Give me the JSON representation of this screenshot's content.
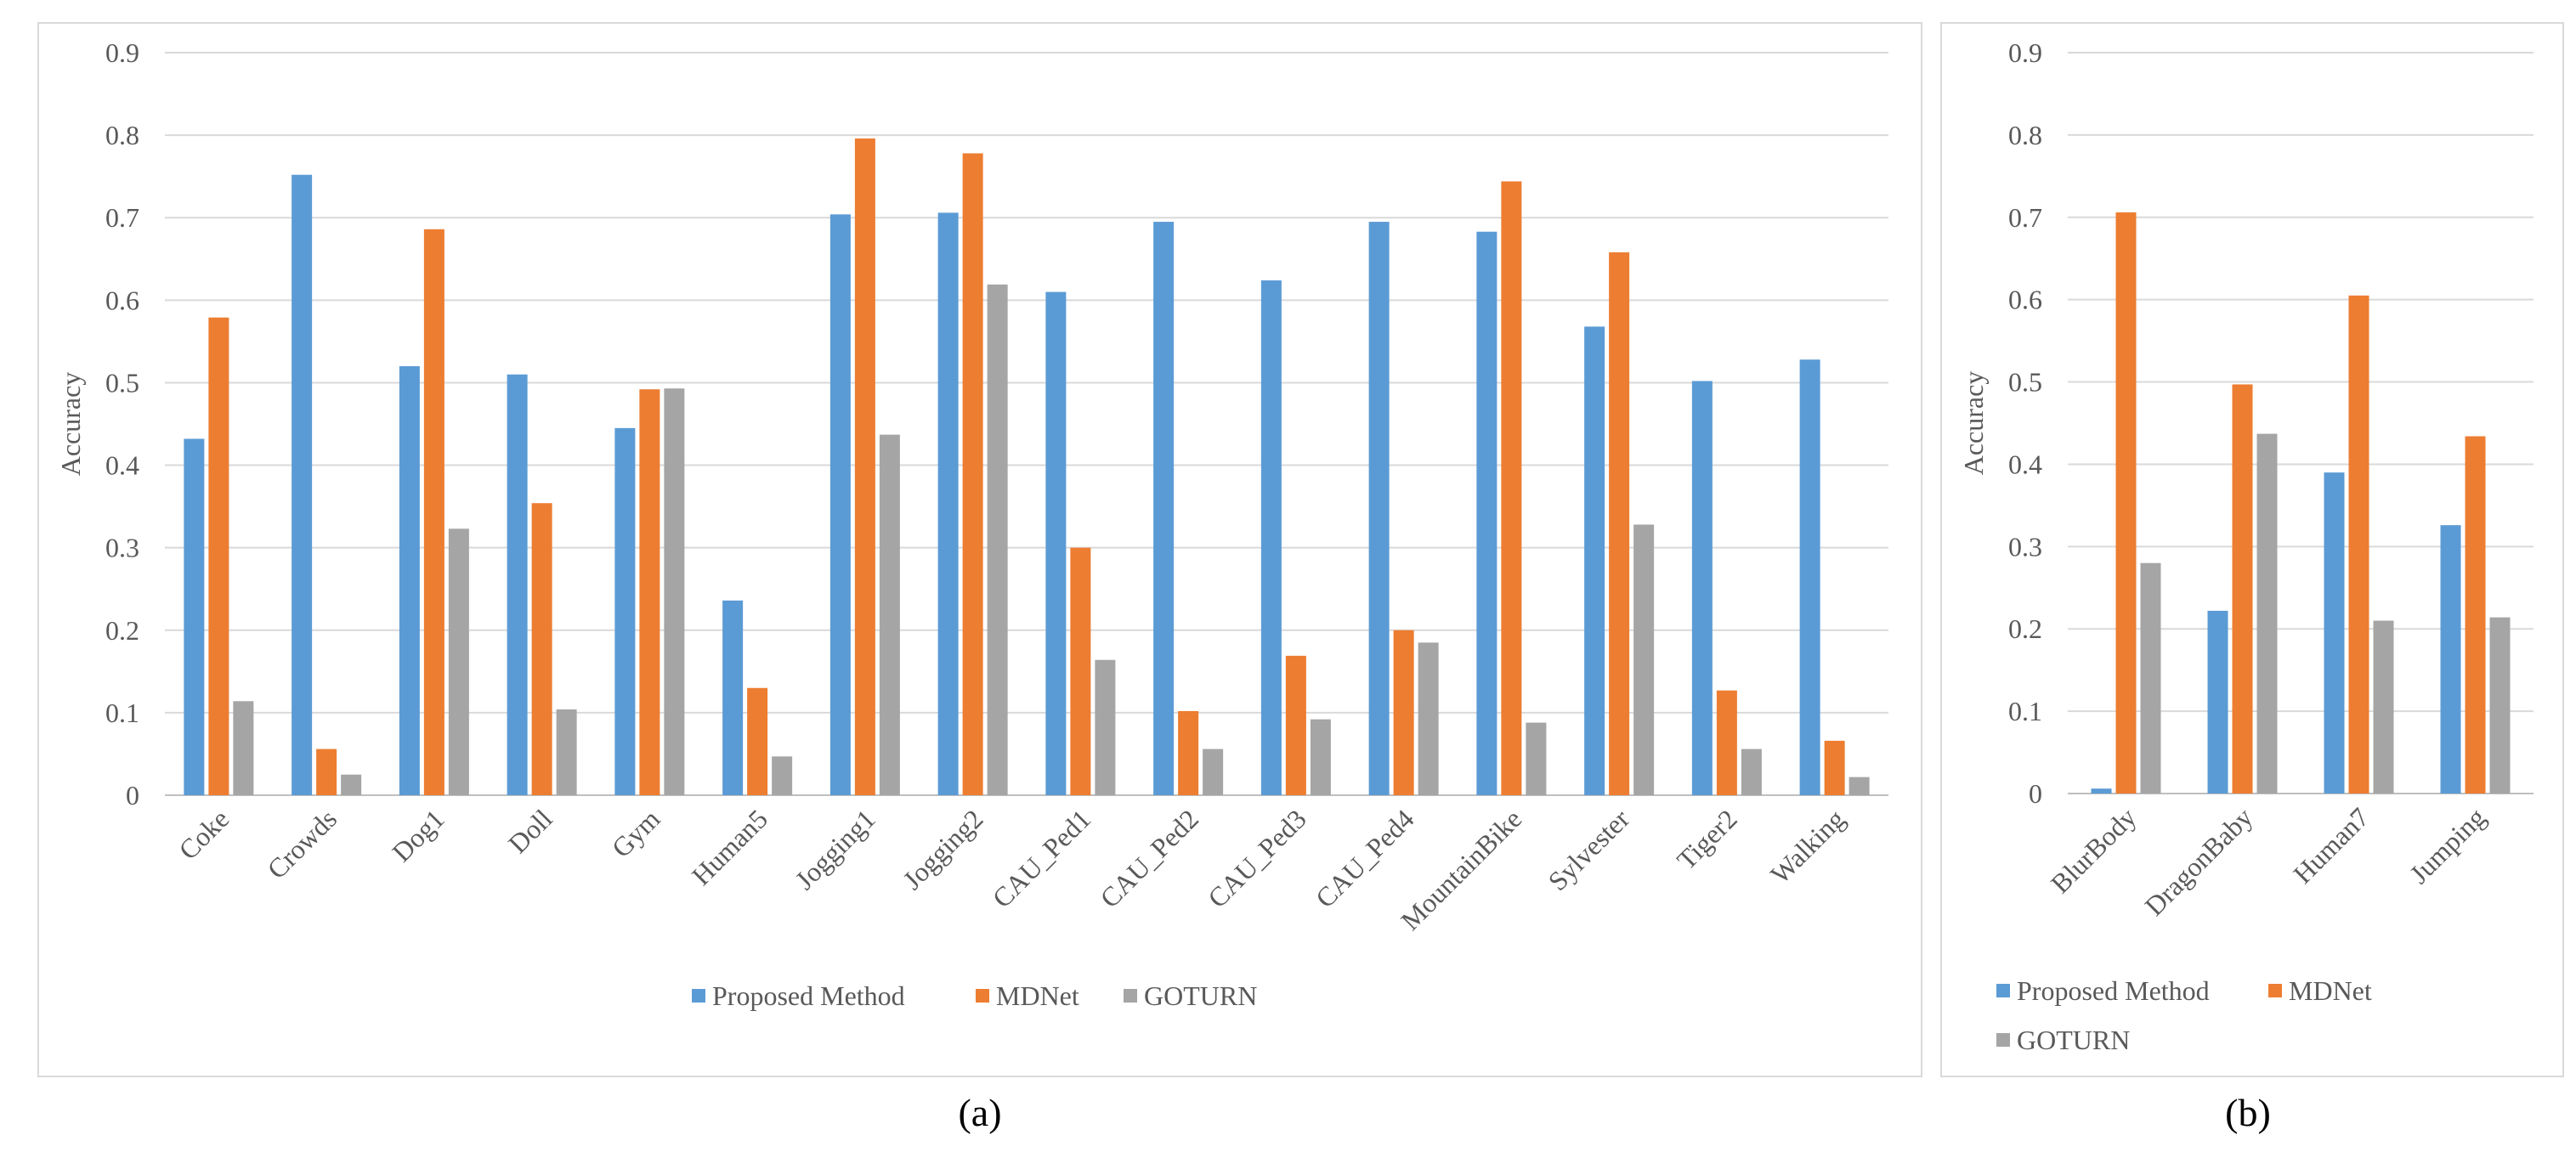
{
  "colors": {
    "Proposed Method": "#5b9bd5",
    "MDNet": "#ed7d31",
    "GOTURN": "#a5a5a5"
  },
  "panels": {
    "a": "(a)",
    "b": "(b)"
  },
  "chart_data": [
    {
      "type": "bar",
      "ylabel": "Accuracy",
      "ylim": [
        0,
        0.9
      ],
      "yticks": [
        "0",
        "0.1",
        "0.2",
        "0.3",
        "0.4",
        "0.5",
        "0.6",
        "0.7",
        "0.8",
        "0.9"
      ],
      "grid": true,
      "legend_position": "bottom",
      "categories": [
        "Coke",
        "Crowds",
        "Dog1",
        "Doll",
        "Gym",
        "Human5",
        "Jogging1",
        "Jogging2",
        "CAU_Ped1",
        "CAU_Ped2",
        "CAU_Ped3",
        "CAU_Ped4",
        "MountainBike",
        "Sylvester",
        "Tiger2",
        "Walking"
      ],
      "series": [
        {
          "name": "Proposed Method",
          "values": [
            0.432,
            0.752,
            0.52,
            0.51,
            0.445,
            0.236,
            0.704,
            0.706,
            0.61,
            0.695,
            0.624,
            0.695,
            0.683,
            0.568,
            0.502,
            0.528
          ]
        },
        {
          "name": "MDNet",
          "values": [
            0.579,
            0.056,
            0.686,
            0.354,
            0.492,
            0.13,
            0.796,
            0.778,
            0.3,
            0.102,
            0.169,
            0.2,
            0.744,
            0.658,
            0.127,
            0.066
          ]
        },
        {
          "name": "GOTURN",
          "values": [
            0.114,
            0.025,
            0.323,
            0.104,
            0.493,
            0.047,
            0.437,
            0.619,
            0.164,
            0.056,
            0.092,
            0.185,
            0.088,
            0.328,
            0.056,
            0.022
          ]
        }
      ]
    },
    {
      "type": "bar",
      "ylabel": "Accuracy",
      "ylim": [
        0,
        0.9
      ],
      "yticks": [
        "0",
        "0.1",
        "0.2",
        "0.3",
        "0.4",
        "0.5",
        "0.6",
        "0.7",
        "0.8",
        "0.9"
      ],
      "grid": true,
      "legend_position": "bottom",
      "categories": [
        "BlurBody",
        "DragonBaby",
        "Human7",
        "Jumping"
      ],
      "series": [
        {
          "name": "Proposed Method",
          "values": [
            0.006,
            0.222,
            0.39,
            0.326
          ]
        },
        {
          "name": "MDNet",
          "values": [
            0.706,
            0.497,
            0.605,
            0.434
          ]
        },
        {
          "name": "GOTURN",
          "values": [
            0.28,
            0.437,
            0.21,
            0.214
          ]
        }
      ]
    }
  ]
}
